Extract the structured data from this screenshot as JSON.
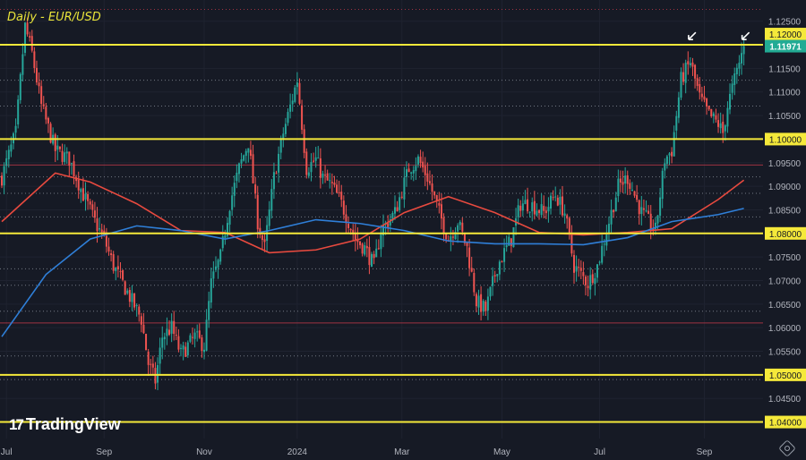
{
  "title": "Daily - EUR/USD",
  "brand": "TradingView",
  "colors": {
    "bg": "#161a25",
    "up": "#26a69a",
    "down": "#ef5350",
    "key": "#f5e93a",
    "ma_fast": "#e84a3f",
    "ma_slow": "#2f7fd8",
    "price_label": "#22ab94",
    "axis_text": "#b2b5be"
  },
  "chart_data": {
    "type": "candlestick",
    "title": "Daily - EUR/USD",
    "ylim": [
      1.0365,
      1.1295
    ],
    "xlim": [
      0,
      328
    ],
    "y_ticks": [
      "1.12500",
      "1.11500",
      "1.11000",
      "1.10500",
      "1.09500",
      "1.09000",
      "1.08500",
      "1.07500",
      "1.07000",
      "1.06500",
      "1.06000",
      "1.05500",
      "1.04500"
    ],
    "y_tick_values": [
      1.125,
      1.115,
      1.11,
      1.105,
      1.095,
      1.09,
      1.085,
      1.075,
      1.07,
      1.065,
      1.06,
      1.055,
      1.045
    ],
    "x_ticks": [
      {
        "label": "Jul",
        "day": 2
      },
      {
        "label": "Sep",
        "day": 44
      },
      {
        "label": "Nov",
        "day": 87
      },
      {
        "label": "2024",
        "day": 127
      },
      {
        "label": "Mar",
        "day": 172
      },
      {
        "label": "May",
        "day": 215
      },
      {
        "label": "Jul",
        "day": 257
      },
      {
        "label": "Sep",
        "day": 302
      }
    ],
    "key_levels": [
      {
        "value": 1.12,
        "label": "1.12000"
      },
      {
        "value": 1.1,
        "label": "1.10000"
      },
      {
        "value": 1.08,
        "label": "1.08000"
      },
      {
        "value": 1.05,
        "label": "1.05000"
      },
      {
        "value": 1.04,
        "label": "1.04000"
      }
    ],
    "current_price": {
      "value": 1.11971,
      "label": "1.11971"
    },
    "minor_levels": [
      1.1275,
      1.1125,
      1.107,
      1.0945,
      1.092,
      1.0885,
      1.0835,
      1.0725,
      1.069,
      1.0635,
      1.061,
      1.054,
      1.049
    ],
    "minor_red_levels": [
      1.1275,
      1.0945,
      1.061
    ],
    "close_path": [
      [
        0,
        1.0919
      ],
      [
        6,
        1.1013
      ],
      [
        10,
        1.1239
      ],
      [
        13,
        1.1182
      ],
      [
        17,
        1.107
      ],
      [
        23,
        1.0976
      ],
      [
        29,
        1.0957
      ],
      [
        35,
        1.0882
      ],
      [
        40,
        1.0825
      ],
      [
        44,
        1.0788
      ],
      [
        48,
        1.0731
      ],
      [
        54,
        1.0675
      ],
      [
        60,
        1.0618
      ],
      [
        63,
        1.0524
      ],
      [
        66,
        1.0487
      ],
      [
        69,
        1.0581
      ],
      [
        73,
        1.06
      ],
      [
        77,
        1.0543
      ],
      [
        83,
        1.0581
      ],
      [
        87,
        1.0562
      ],
      [
        90,
        1.0694
      ],
      [
        94,
        1.075
      ],
      [
        98,
        1.0863
      ],
      [
        102,
        1.0938
      ],
      [
        106,
        1.0994
      ],
      [
        110,
        1.0825
      ],
      [
        113,
        1.0769
      ],
      [
        117,
        1.0919
      ],
      [
        121,
        1.1013
      ],
      [
        125,
        1.1088
      ],
      [
        127,
        1.1126
      ],
      [
        131,
        1.0938
      ],
      [
        135,
        1.0957
      ],
      [
        138,
        1.0919
      ],
      [
        142,
        1.09
      ],
      [
        146,
        1.0863
      ],
      [
        152,
        1.0788
      ],
      [
        156,
        1.0769
      ],
      [
        160,
        1.0731
      ],
      [
        163,
        1.0806
      ],
      [
        169,
        1.0844
      ],
      [
        175,
        1.0938
      ],
      [
        179,
        1.0957
      ],
      [
        183,
        1.0919
      ],
      [
        188,
        1.0844
      ],
      [
        192,
        1.0788
      ],
      [
        196,
        1.0825
      ],
      [
        200,
        1.0769
      ],
      [
        204,
        1.0656
      ],
      [
        208,
        1.0637
      ],
      [
        213,
        1.0731
      ],
      [
        219,
        1.0788
      ],
      [
        223,
        1.0863
      ],
      [
        227,
        1.0863
      ],
      [
        233,
        1.0844
      ],
      [
        238,
        1.0882
      ],
      [
        242,
        1.0844
      ],
      [
        246,
        1.0731
      ],
      [
        252,
        1.0694
      ],
      [
        256,
        1.0731
      ],
      [
        260,
        1.0806
      ],
      [
        265,
        1.09
      ],
      [
        269,
        1.0919
      ],
      [
        275,
        1.0844
      ],
      [
        281,
        1.0806
      ],
      [
        285,
        1.0957
      ],
      [
        288,
        1.0976
      ],
      [
        292,
        1.1126
      ],
      [
        296,
        1.1164
      ],
      [
        300,
        1.1088
      ],
      [
        304,
        1.1051
      ],
      [
        308,
        1.1032
      ],
      [
        310,
        1.1013
      ],
      [
        312,
        1.107
      ],
      [
        315,
        1.1126
      ],
      [
        319,
        1.1197
      ]
    ],
    "series": [
      {
        "name": "MA fast",
        "path": [
          [
            0,
            1.0825
          ],
          [
            23,
            1.0928
          ],
          [
            38,
            1.0909
          ],
          [
            58,
            1.0863
          ],
          [
            77,
            1.0806
          ],
          [
            96,
            1.0802
          ],
          [
            115,
            1.0759
          ],
          [
            135,
            1.0765
          ],
          [
            154,
            1.0788
          ],
          [
            173,
            1.0844
          ],
          [
            192,
            1.0878
          ],
          [
            212,
            1.0844
          ],
          [
            231,
            1.0802
          ],
          [
            250,
            1.0797
          ],
          [
            269,
            1.0802
          ],
          [
            288,
            1.081
          ],
          [
            308,
            1.0872
          ],
          [
            319,
            1.0913
          ]
        ]
      },
      {
        "name": "MA slow",
        "path": [
          [
            0,
            1.0581
          ],
          [
            19,
            1.0713
          ],
          [
            38,
            1.0788
          ],
          [
            58,
            1.0816
          ],
          [
            77,
            1.0806
          ],
          [
            96,
            1.0788
          ],
          [
            115,
            1.0806
          ],
          [
            135,
            1.0829
          ],
          [
            154,
            1.0821
          ],
          [
            173,
            1.0806
          ],
          [
            192,
            1.0784
          ],
          [
            212,
            1.0778
          ],
          [
            231,
            1.0778
          ],
          [
            250,
            1.0776
          ],
          [
            269,
            1.0791
          ],
          [
            288,
            1.0825
          ],
          [
            308,
            1.084
          ],
          [
            319,
            1.0853
          ]
        ]
      }
    ],
    "annotations": [
      {
        "type": "arrow",
        "day": 296,
        "value": 1.1215
      },
      {
        "type": "arrow",
        "day": 319,
        "value": 1.1215
      }
    ]
  }
}
